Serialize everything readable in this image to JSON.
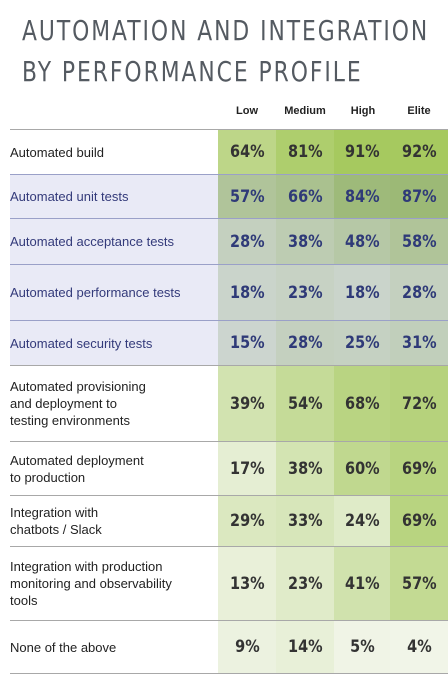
{
  "chart_data": {
    "type": "table",
    "title_lines": [
      "AUTOMATION AND INTEGRATION",
      "BY PERFORMANCE PROFILE"
    ],
    "columns": [
      "Low",
      "Medium",
      "High",
      "Elite"
    ],
    "rows": [
      {
        "label_lines": [
          "Automated build"
        ],
        "values": [
          "64%",
          "81%",
          "91%",
          "92%"
        ],
        "numeric": [
          64,
          81,
          91,
          92
        ],
        "highlight": false
      },
      {
        "label_lines": [
          "Automated unit tests"
        ],
        "values": [
          "57%",
          "66%",
          "84%",
          "87%"
        ],
        "numeric": [
          57,
          66,
          84,
          87
        ],
        "highlight": true
      },
      {
        "label_lines": [
          "Automated acceptance tests"
        ],
        "values": [
          "28%",
          "38%",
          "48%",
          "58%"
        ],
        "numeric": [
          28,
          38,
          48,
          58
        ],
        "highlight": true
      },
      {
        "label_lines": [
          "Automated performance tests"
        ],
        "values": [
          "18%",
          "23%",
          "18%",
          "28%"
        ],
        "numeric": [
          18,
          23,
          18,
          28
        ],
        "highlight": true
      },
      {
        "label_lines": [
          "Automated security tests"
        ],
        "values": [
          "15%",
          "28%",
          "25%",
          "31%"
        ],
        "numeric": [
          15,
          28,
          25,
          31
        ],
        "highlight": true
      },
      {
        "label_lines": [
          "Automated provisioning",
          "and deployment to",
          "testing environments"
        ],
        "values": [
          "39%",
          "54%",
          "68%",
          "72%"
        ],
        "numeric": [
          39,
          54,
          68,
          72
        ],
        "highlight": false
      },
      {
        "label_lines": [
          "Automated deployment",
          "to production"
        ],
        "values": [
          "17%",
          "38%",
          "60%",
          "69%"
        ],
        "numeric": [
          17,
          38,
          60,
          69
        ],
        "highlight": false
      },
      {
        "label_lines": [
          "Integration with",
          "chatbots / Slack"
        ],
        "values": [
          "29%",
          "33%",
          "24%",
          "69%"
        ],
        "numeric": [
          29,
          33,
          24,
          69
        ],
        "highlight": false
      },
      {
        "label_lines": [
          "Integration with production",
          "monitoring and observability",
          "tools"
        ],
        "values": [
          "13%",
          "23%",
          "41%",
          "57%"
        ],
        "numeric": [
          13,
          23,
          41,
          57
        ],
        "highlight": false
      },
      {
        "label_lines": [
          "None of the above"
        ],
        "values": [
          "9%",
          "14%",
          "5%",
          "4%"
        ],
        "numeric": [
          9,
          14,
          5,
          4
        ],
        "highlight": false
      }
    ],
    "colors": {
      "heat_low": "#f4f7ee",
      "heat_high": "#a6c95f",
      "highlight_tint": "#6e78b4",
      "highlight_label_bg": "#e9eaf6",
      "title": "#545a61"
    }
  }
}
